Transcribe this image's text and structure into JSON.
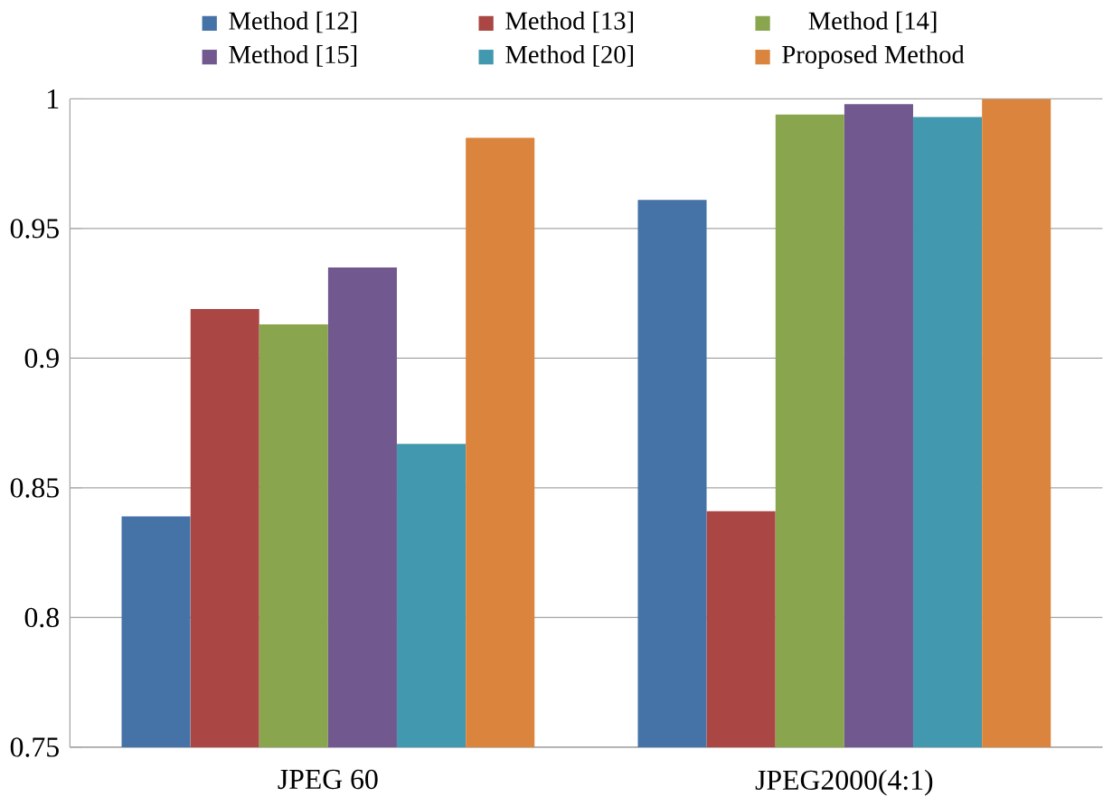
{
  "chart_data": {
    "type": "bar",
    "categories": [
      "JPEG 60",
      "JPEG2000(4:1)"
    ],
    "series": [
      {
        "name": "Method [12]",
        "color": "#4572a7",
        "values": [
          0.839,
          0.961
        ]
      },
      {
        "name": "Method [13]",
        "color": "#aa4643",
        "values": [
          0.919,
          0.841
        ]
      },
      {
        "name": "Method [14]",
        "color": "#89a54e",
        "values": [
          0.913,
          0.994
        ]
      },
      {
        "name": "Method [15]",
        "color": "#71588f",
        "values": [
          0.935,
          0.998
        ]
      },
      {
        "name": "Method [20]",
        "color": "#4198af",
        "values": [
          0.867,
          0.993
        ]
      },
      {
        "name": "Proposed Method",
        "color": "#db843d",
        "values": [
          0.985,
          1.0
        ]
      }
    ],
    "ylim": [
      0.75,
      1
    ],
    "yticks": [
      0.75,
      0.8,
      0.85,
      0.9,
      0.95,
      1
    ],
    "grid": "y",
    "legend": "top"
  }
}
